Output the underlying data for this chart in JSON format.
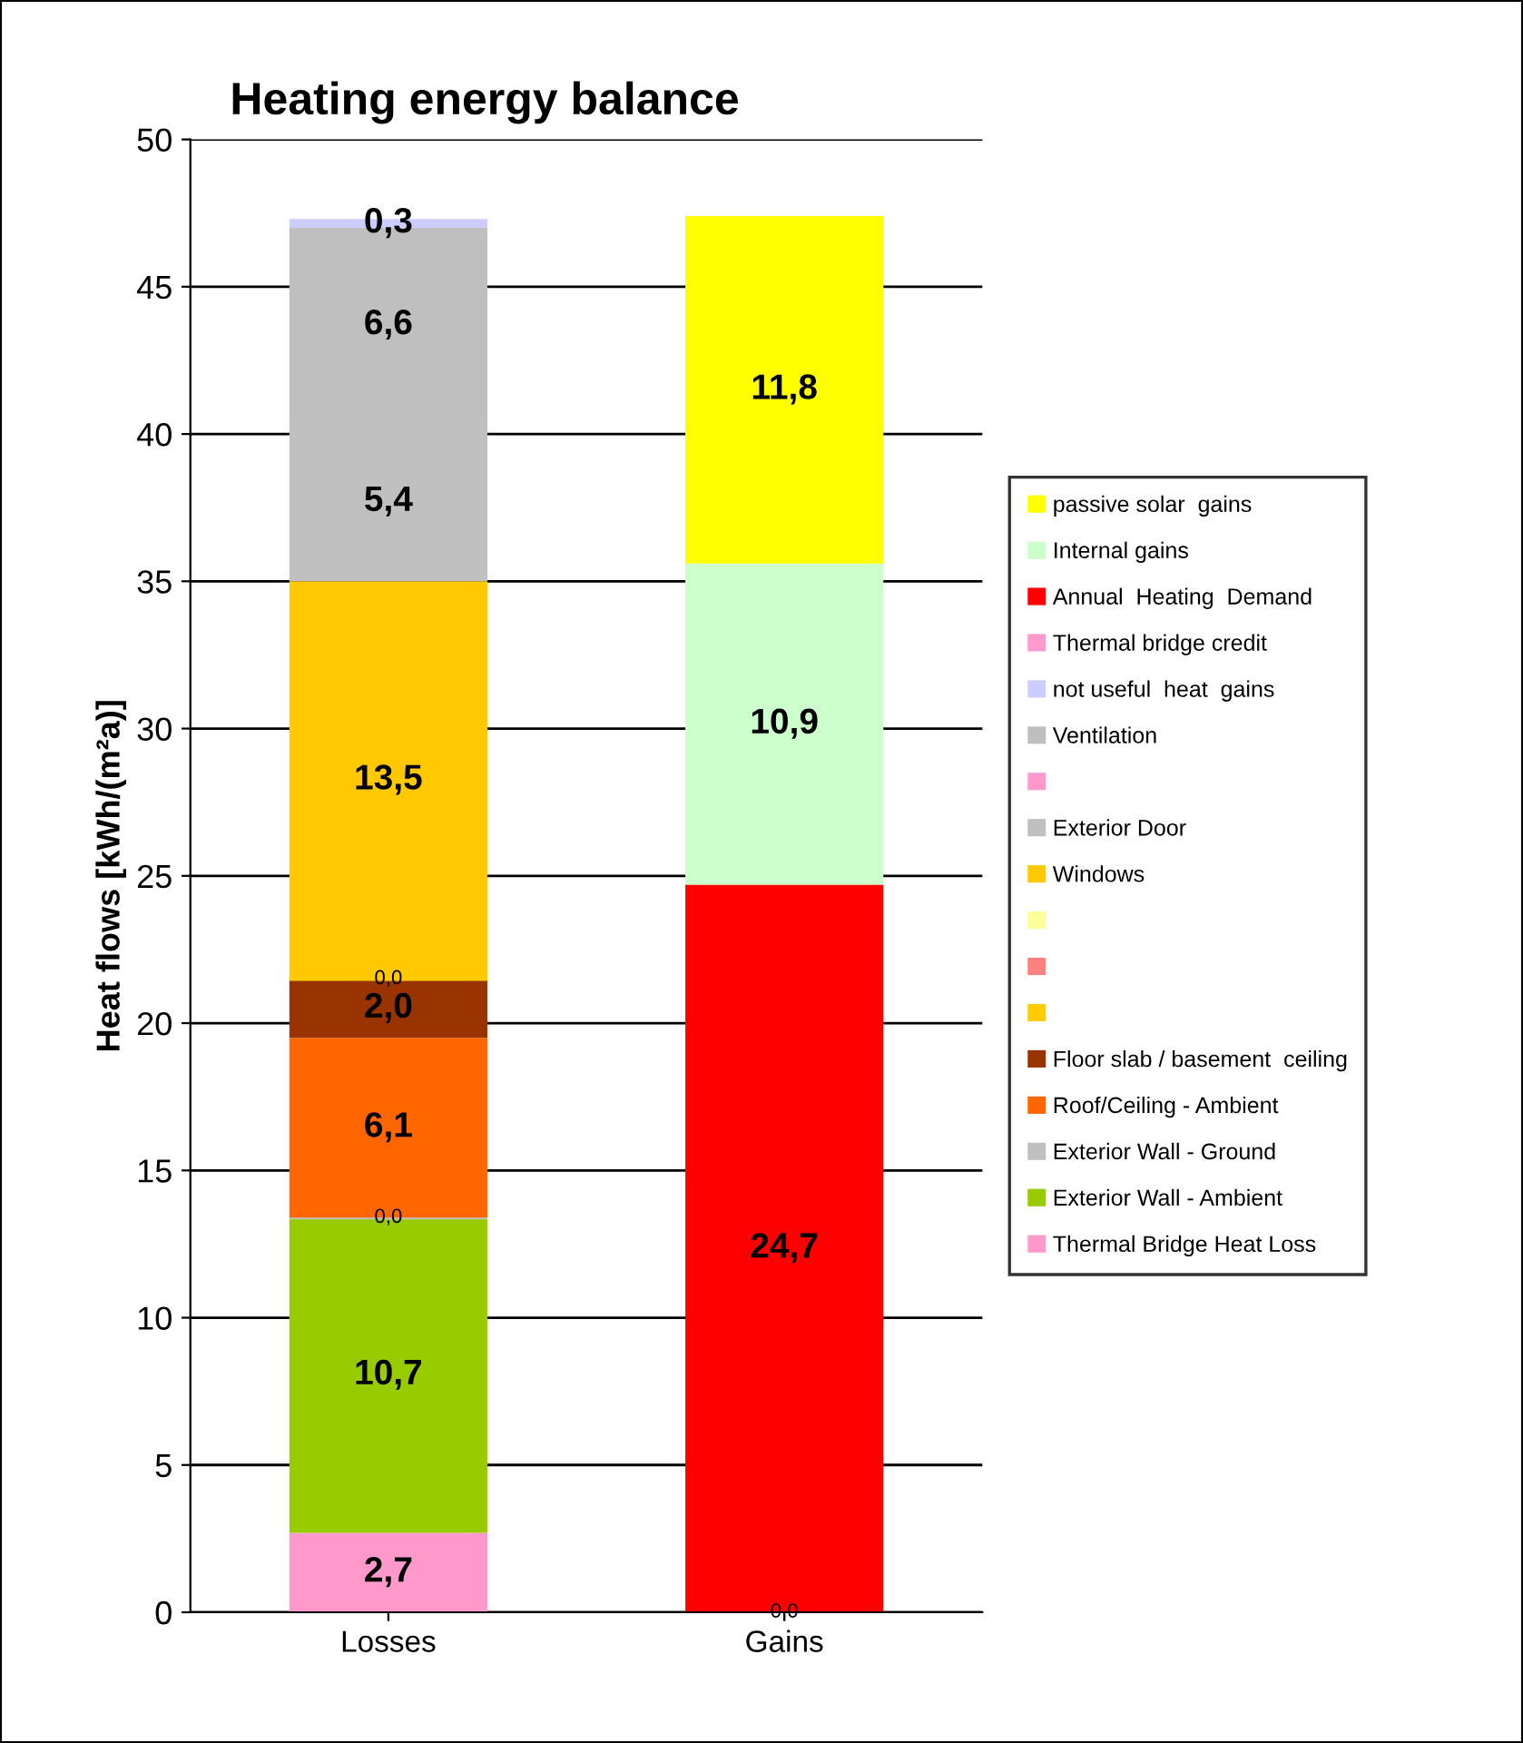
{
  "chart_data": {
    "type": "bar",
    "stacked": true,
    "title": "Heating energy balance",
    "ylabel": "Heat flows [kWh/(m²a)]",
    "categories": [
      "Losses",
      "Gains"
    ],
    "ylim": [
      0,
      50
    ],
    "yticks": [
      0,
      5,
      10,
      15,
      20,
      25,
      30,
      35,
      40,
      45,
      50
    ],
    "grid": "y",
    "legend": "right",
    "series": [
      {
        "name": "Thermal Bridge Heat Loss",
        "color": "#ff99cc",
        "values": [
          2.7,
          null
        ],
        "value_labels": [
          "2,7",
          null
        ]
      },
      {
        "name": "Exterior Wall - Ambient",
        "color": "#99cc00",
        "values": [
          10.7,
          null
        ],
        "value_labels": [
          "10,7",
          null
        ]
      },
      {
        "name": "Exterior Wall - Ground",
        "color": "#c0c0c0",
        "values": [
          0.0,
          null
        ],
        "value_labels": [
          "0,0",
          null
        ]
      },
      {
        "name": "Roof/Ceiling - Ambient",
        "color": "#ff6600",
        "values": [
          6.1,
          null
        ],
        "value_labels": [
          "6,1",
          null
        ]
      },
      {
        "name": "Floor slab / basement  ceiling",
        "color": "#993300",
        "values": [
          2.0,
          null
        ],
        "value_labels": [
          "2,0",
          null
        ]
      },
      {
        "color": "#ffcc00",
        "values": [
          0.0,
          null
        ],
        "value_labels": [
          "0,0",
          null
        ]
      },
      {
        "color": "#ff8080",
        "values": [
          null,
          null
        ]
      },
      {
        "color": "#ffff99",
        "values": [
          null,
          null
        ]
      },
      {
        "name": "Windows",
        "color": "#ffc800",
        "values": [
          13.5,
          null
        ],
        "value_labels": [
          "13,5",
          null
        ]
      },
      {
        "name": "Exterior Door",
        "color": "#c0c0c1",
        "values": [
          5.4,
          null
        ],
        "value_labels": [
          "5,4",
          null
        ]
      },
      {
        "color": "#ff99cd",
        "values": [
          null,
          null
        ]
      },
      {
        "name": "Ventilation",
        "color": "#bfbfbf",
        "values": [
          6.6,
          null
        ],
        "value_labels": [
          "6,6",
          null
        ]
      },
      {
        "name": "not useful  heat  gains",
        "color": "#ccccff",
        "values": [
          0.3,
          null
        ],
        "value_labels": [
          "0,3",
          null
        ]
      },
      {
        "name": "Thermal bridge credit",
        "color": "#ff99ce",
        "values": [
          null,
          0.0
        ],
        "value_labels": [
          null,
          "0,0"
        ]
      },
      {
        "name": "Annual  Heating  Demand",
        "color": "#ff0000",
        "values": [
          null,
          24.7
        ],
        "value_labels": [
          null,
          "24,7"
        ]
      },
      {
        "name": "Internal gains",
        "color": "#ccffcc",
        "values": [
          null,
          10.9
        ],
        "value_labels": [
          null,
          "10,9"
        ]
      },
      {
        "name": "passive solar  gains",
        "color": "#ffff00",
        "values": [
          null,
          11.8
        ],
        "value_labels": [
          null,
          "11,8"
        ]
      }
    ]
  }
}
